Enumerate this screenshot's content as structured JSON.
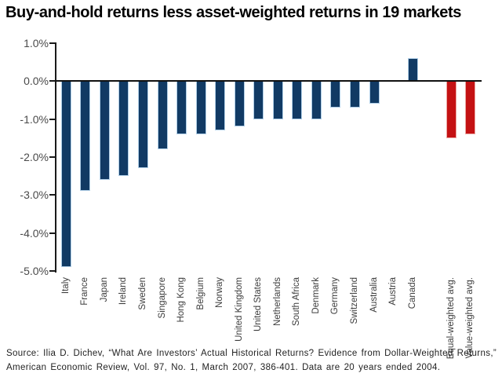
{
  "chart_data": {
    "type": "bar",
    "title": "Buy-and-hold returns less asset-weighted returns in 19 markets",
    "categories": [
      "Italy",
      "France",
      "Japan",
      "Ireland",
      "Sweden",
      "Singapore",
      "Hong Kong",
      "Belgium",
      "Norway",
      "United Kingdom",
      "United States",
      "Netherlands",
      "South Africa",
      "Denmark",
      "Germany",
      "Switzerland",
      "Australia",
      "Austria",
      "Canada"
    ],
    "values": [
      -4.9,
      -2.9,
      -2.6,
      -2.5,
      -2.3,
      -1.8,
      -1.4,
      -1.4,
      -1.3,
      -1.2,
      -1.0,
      -1.0,
      -1.0,
      -1.0,
      -0.7,
      -0.7,
      -0.6,
      0.0,
      0.6
    ],
    "averages": [
      {
        "label": "Equal-weighted avg.",
        "value": -1.5
      },
      {
        "label": "Value-weighted avg.",
        "value": -1.4
      }
    ],
    "xlabel": "",
    "ylabel": "",
    "ylim": [
      -5.0,
      1.0
    ],
    "yticks": [
      {
        "value": 1.0,
        "label": "1.0%"
      },
      {
        "value": 0.0,
        "label": "0.0%"
      },
      {
        "value": -1.0,
        "label": "-1.0%"
      },
      {
        "value": -2.0,
        "label": "-2.0%"
      },
      {
        "value": -3.0,
        "label": "-3.0%"
      },
      {
        "value": -4.0,
        "label": "-4.0%"
      },
      {
        "value": -5.0,
        "label": "-5.0%"
      }
    ],
    "grid": false,
    "legend": "none",
    "colors": {
      "market_bar": "#113a64",
      "market_bar_edge": "#aecde6",
      "average_bar": "#c41113",
      "average_bar_edge": "#eaa6a2",
      "axis": "#1a1a1a",
      "tick_label": "#4a4a4a",
      "category_label": "#3c3c3c"
    }
  },
  "source": {
    "line1": "Source:   Ilia D. Dichev, “What Are Investors’ Actual Historical Returns? Evidence from Dollar-Weighted Returns,”",
    "line2": "American Economic Review, Vol. 97, No. 1, March 2007, 386-401. Data are 20 years ended 2004."
  }
}
